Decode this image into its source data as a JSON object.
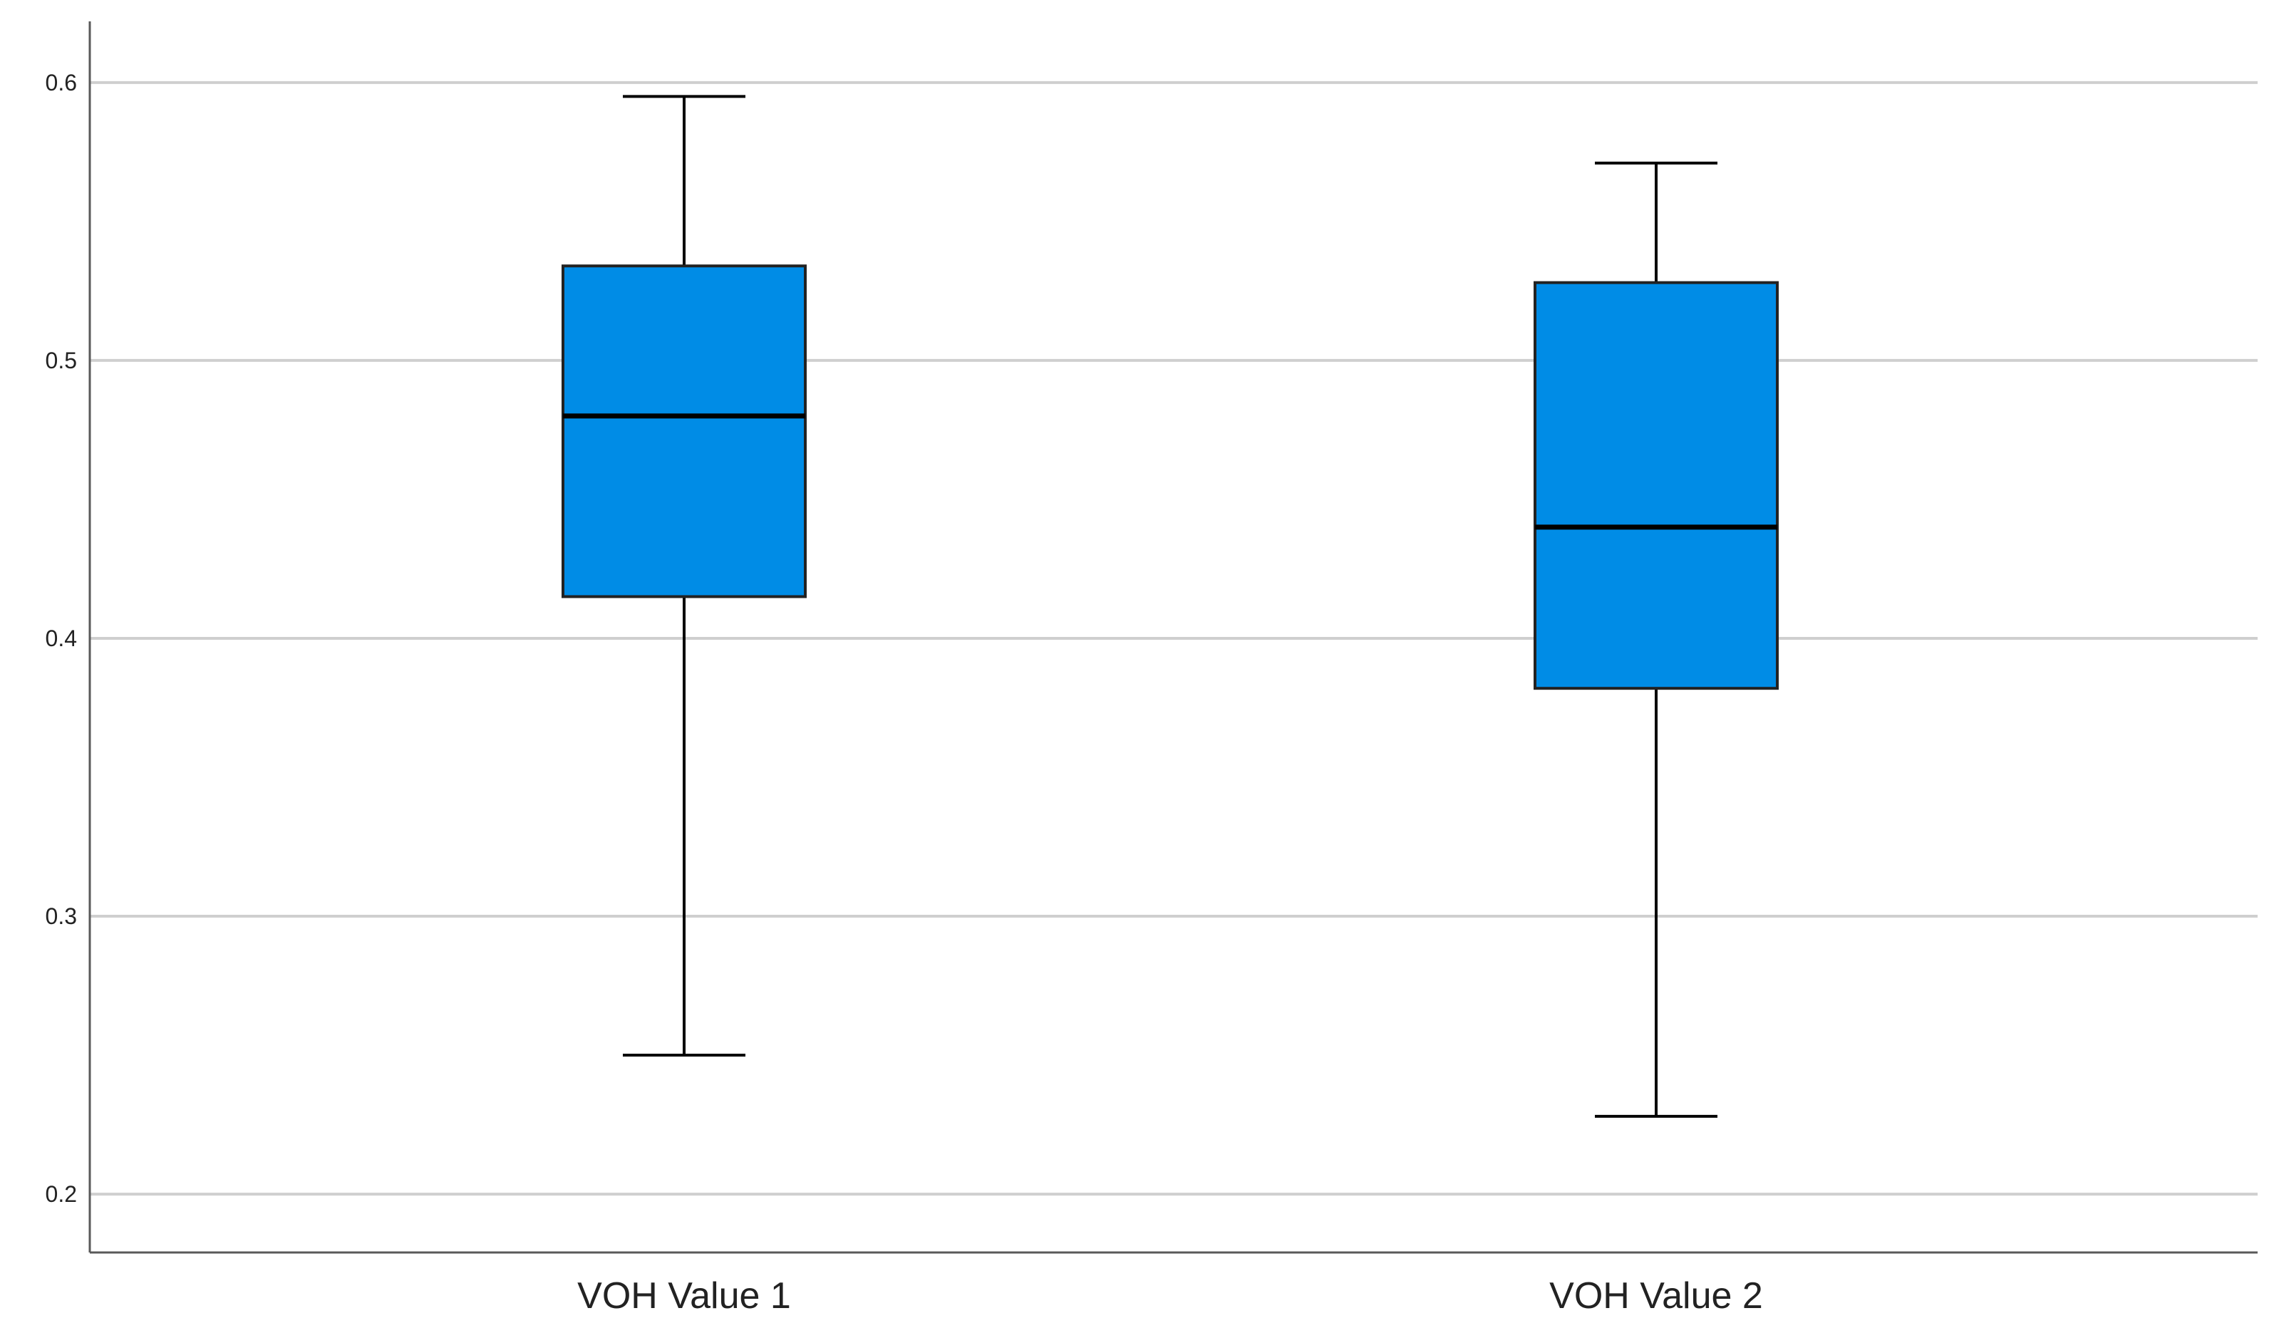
{
  "chart_data": {
    "type": "box",
    "title": "",
    "xlabel": "",
    "ylabel": "",
    "categories": [
      "VOH Value 1",
      "VOH Value 2"
    ],
    "boxes": [
      {
        "category": "VOH Value 1",
        "min": 0.25,
        "q1": 0.415,
        "median": 0.48,
        "q3": 0.534,
        "max": 0.595
      },
      {
        "category": "VOH Value 2",
        "min": 0.228,
        "q1": 0.382,
        "median": 0.44,
        "q3": 0.528,
        "max": 0.571
      }
    ],
    "ylim": [
      0.179,
      0.622
    ],
    "yticks": [
      0.2,
      0.3,
      0.4,
      0.5,
      0.6
    ],
    "ytick_labels": [
      "0.2",
      "0.3",
      "0.4",
      "0.5",
      "0.6"
    ],
    "grid": true,
    "legend": "none",
    "colors": {
      "box_fill": "#008ce6",
      "box_stroke": "#222222",
      "gridline": "#cfcfcf",
      "axis": "#595959"
    }
  }
}
